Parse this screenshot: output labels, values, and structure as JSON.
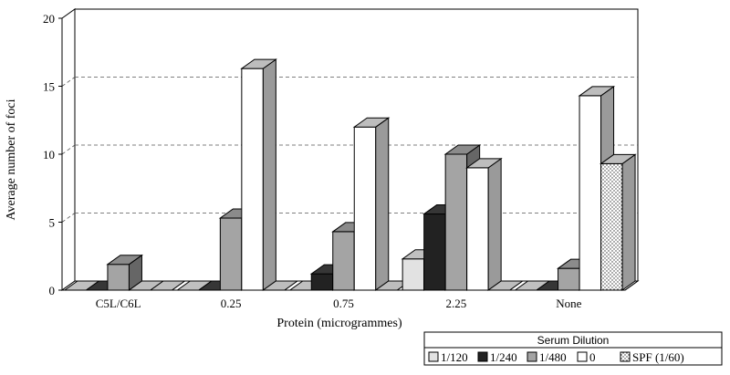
{
  "chart_data": {
    "type": "bar",
    "subtype": "3d-clustered-column",
    "title": "",
    "xlabel": "Protein (microgrammes)",
    "ylabel": "Average number of foci",
    "ylim": [
      0,
      20
    ],
    "yticks": [
      0,
      5,
      10,
      15,
      20
    ],
    "grid": "dashed-horizontal",
    "categories": [
      "C5L/C6L",
      "0.25",
      "0.75",
      "2.25",
      "None"
    ],
    "legend": {
      "title": "Serum Dilution",
      "placement": "bottom-right"
    },
    "series": [
      {
        "name": "1/120",
        "color": "#e2e2e2",
        "values": [
          0,
          0,
          0,
          2.3,
          0
        ]
      },
      {
        "name": "1/240",
        "color": "#222222",
        "values": [
          0,
          0,
          1.2,
          5.6,
          0
        ]
      },
      {
        "name": "1/480",
        "color": "#a4a4a4",
        "values": [
          1.9,
          5.3,
          4.3,
          10.0,
          1.6
        ]
      },
      {
        "name": "0",
        "color": "#ffffff",
        "values": [
          0,
          16.3,
          12.0,
          9.0,
          14.3
        ]
      },
      {
        "name": "SPF (1/60)",
        "color": "#ffffff",
        "pattern": "dots",
        "values": [
          0,
          0,
          0,
          0,
          9.3
        ]
      }
    ]
  }
}
